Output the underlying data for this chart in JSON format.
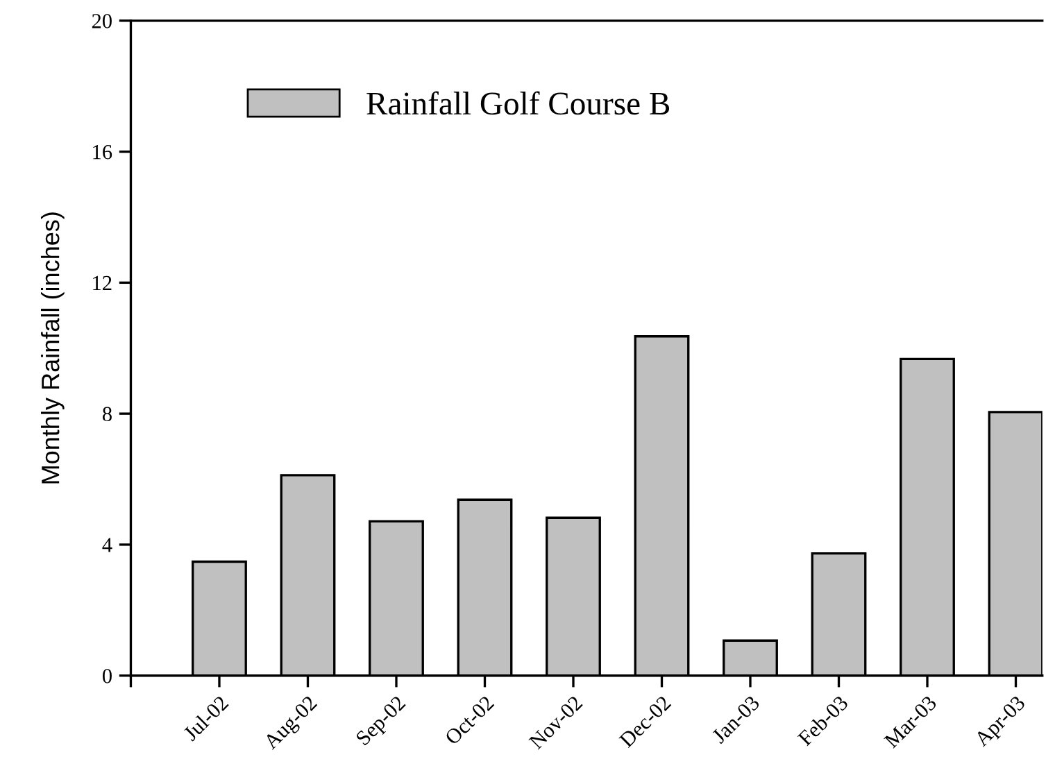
{
  "chart_data": {
    "type": "bar",
    "ylabel": "Monthly Rainfall (inches)",
    "categories": [
      "Jul-02",
      "Aug-02",
      "Sep-02",
      "Oct-02",
      "Nov-02",
      "Dec-02",
      "Jan-03",
      "Feb-03",
      "Mar-03",
      "Apr-03"
    ],
    "series": [
      {
        "name": "Rainfall Golf Course B",
        "color": "#c0c0c0",
        "values": [
          3.48,
          6.12,
          4.71,
          5.37,
          4.82,
          10.36,
          1.07,
          3.73,
          9.67,
          8.05
        ]
      }
    ],
    "ylim": [
      0,
      20
    ],
    "yticks": [
      0,
      4,
      8,
      12,
      16,
      20
    ],
    "grid": false,
    "legend": "top left"
  }
}
